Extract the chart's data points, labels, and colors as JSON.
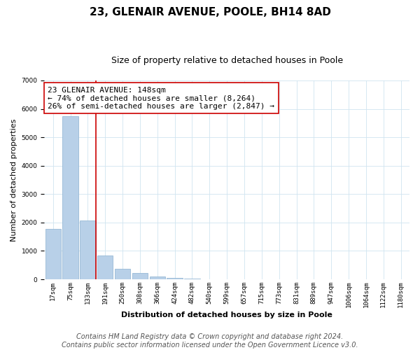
{
  "title": "23, GLENAIR AVENUE, POOLE, BH14 8AD",
  "subtitle": "Size of property relative to detached houses in Poole",
  "xlabel": "Distribution of detached houses by size in Poole",
  "ylabel": "Number of detached properties",
  "bar_labels": [
    "17sqm",
    "75sqm",
    "133sqm",
    "191sqm",
    "250sqm",
    "308sqm",
    "366sqm",
    "424sqm",
    "482sqm",
    "540sqm",
    "599sqm",
    "657sqm",
    "715sqm",
    "773sqm",
    "831sqm",
    "889sqm",
    "947sqm",
    "1006sqm",
    "1064sqm",
    "1122sqm",
    "1180sqm"
  ],
  "bar_values": [
    1780,
    5750,
    2060,
    830,
    370,
    220,
    100,
    60,
    30,
    10,
    8,
    5,
    3,
    0,
    0,
    0,
    0,
    0,
    0,
    0,
    0
  ],
  "bar_color": "#b8d0e8",
  "bar_edge_color": "#8ab0d0",
  "grid_color": "#d0e4f0",
  "background_color": "#ffffff",
  "property_line_bar_idx": 2,
  "property_line_color": "#cc0000",
  "annotation_text": "23 GLENAIR AVENUE: 148sqm\n← 74% of detached houses are smaller (8,264)\n26% of semi-detached houses are larger (2,847) →",
  "annotation_box_facecolor": "#ffffff",
  "annotation_box_edgecolor": "#cc0000",
  "ylim": [
    0,
    7000
  ],
  "yticks": [
    0,
    1000,
    2000,
    3000,
    4000,
    5000,
    6000,
    7000
  ],
  "footer_line1": "Contains HM Land Registry data © Crown copyright and database right 2024.",
  "footer_line2": "Contains public sector information licensed under the Open Government Licence v3.0.",
  "title_fontsize": 11,
  "subtitle_fontsize": 9,
  "axis_label_fontsize": 8,
  "ylabel_fontsize": 8,
  "annotation_fontsize": 8,
  "footer_fontsize": 7,
  "tick_fontsize": 6.5
}
